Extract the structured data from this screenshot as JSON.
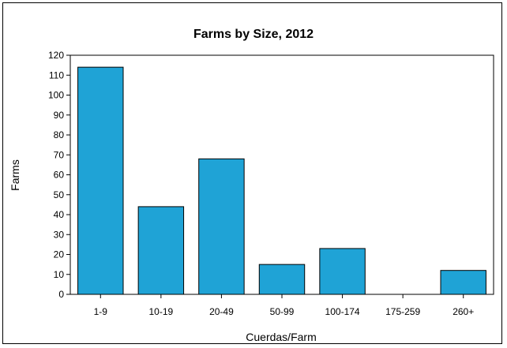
{
  "chart_data": {
    "type": "bar",
    "title": "Farms by Size, 2012",
    "xlabel": "Cuerdas/Farm",
    "ylabel": "Farms",
    "categories": [
      "1-9",
      "10-19",
      "20-49",
      "50-99",
      "100-174",
      "175-259",
      "260+"
    ],
    "values": [
      114,
      44,
      68,
      15,
      23,
      0,
      12
    ],
    "ylim": [
      0,
      120
    ],
    "yticks": [
      0,
      10,
      20,
      30,
      40,
      50,
      60,
      70,
      80,
      90,
      100,
      110,
      120
    ],
    "grid": false,
    "legend": "none",
    "colors": {
      "bar": "#1fa3d6",
      "bar_edge": "#000000"
    }
  }
}
